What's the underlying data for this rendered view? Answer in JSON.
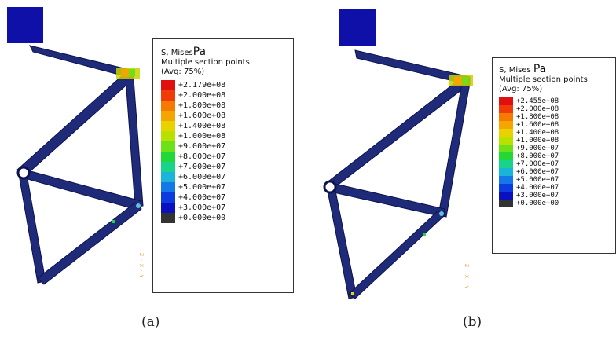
{
  "colors": {
    "member": "#1f2a78",
    "member_edge": "#0c1450",
    "square": "#0f10a8",
    "axis_triad": "#e89b3a"
  },
  "scale_colors": [
    "#e01010",
    "#f03a08",
    "#f47a00",
    "#f5a500",
    "#e8d200",
    "#b8e000",
    "#6ee018",
    "#22d838",
    "#18d48a",
    "#1ab4d8",
    "#1478e8",
    "#0c3ce0",
    "#0a10c0",
    "#333333"
  ],
  "panels": [
    {
      "id": "a",
      "legend": {
        "title": "S, Mises",
        "unit": "Pa",
        "line2": "Multiple section points",
        "line3": "(Avg: 75%)",
        "ticks": [
          "+2.179e+08",
          "+2.000e+08",
          "+1.800e+08",
          "+1.600e+08",
          "+1.400e+08",
          "+1.000e+08",
          "+9.000e+07",
          "+8.000e+07",
          "+7.000e+07",
          "+6.000e+07",
          "+5.000e+07",
          "+4.000e+07",
          "+3.000e+07",
          "+0.000e+00"
        ]
      },
      "caption": "(a)"
    },
    {
      "id": "b",
      "legend": {
        "title": "S, Mises",
        "unit": "Pa",
        "line2": "Multiple section points",
        "line3": "(Avg: 75%)",
        "ticks": [
          "+2.455e+08",
          "+2.000e+08",
          "+1.800e+08",
          "+1.600e+08",
          "+1.400e+08",
          "+1.000e+08",
          "+9.000e+07",
          "+8.000e+07",
          "+7.000e+07",
          "+6.000e+07",
          "+5.000e+07",
          "+4.000e+07",
          "+3.000e+07",
          "+0.000e+00"
        ]
      },
      "caption": "(b)"
    }
  ]
}
